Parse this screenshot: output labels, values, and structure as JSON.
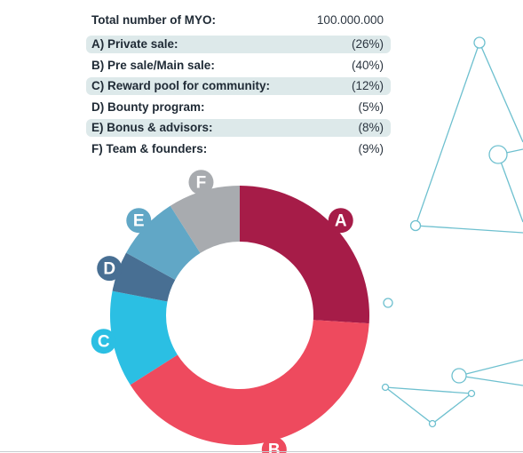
{
  "table": {
    "header_label": "Total number of MYO:",
    "header_value": "100.000.000",
    "rows": [
      {
        "label": "A) Private sale:",
        "value": "(26%)"
      },
      {
        "label": "B) Pre sale/Main sale:",
        "value": "(40%)"
      },
      {
        "label": "C) Reward pool for community:",
        "value": "(12%)"
      },
      {
        "label": "D) Bounty program:",
        "value": "(5%)"
      },
      {
        "label": "E) Bonus & advisors:",
        "value": "(8%)"
      },
      {
        "label": "F) Team & founders:",
        "value": "(9%)"
      }
    ]
  },
  "chart_data": {
    "type": "pie",
    "donut": true,
    "total": 100000000,
    "categories": [
      "A",
      "B",
      "C",
      "D",
      "E",
      "F"
    ],
    "values": [
      26,
      40,
      12,
      5,
      8,
      9
    ],
    "colors": [
      "#a61c48",
      "#ee4a5e",
      "#2bbfe3",
      "#486f93",
      "#61a7c6",
      "#a8abaf"
    ],
    "label_color": "#ffffff",
    "start": "top, clockwise"
  },
  "decoration": {
    "line_color": "#6ec0cf"
  }
}
